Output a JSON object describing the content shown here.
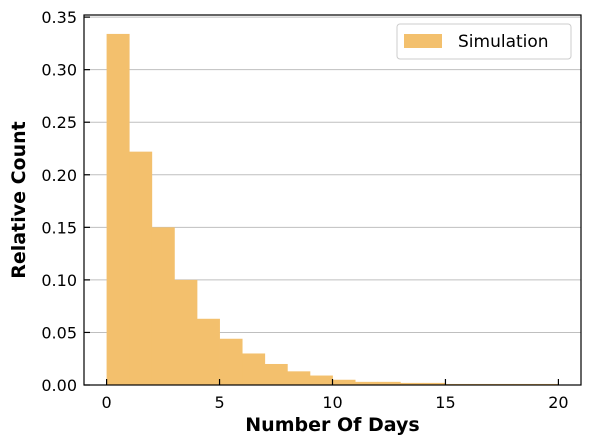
{
  "chart_data": {
    "type": "bar",
    "subtype": "histogram",
    "xlabel": "Number Of Days",
    "ylabel": "Relative Count",
    "xlim": [
      -1,
      21
    ],
    "ylim": [
      0,
      0.352
    ],
    "xticks": [
      0,
      5,
      10,
      15,
      20
    ],
    "xtick_labels": [
      "0",
      "5",
      "10",
      "15",
      "20"
    ],
    "yticks": [
      0,
      0.05,
      0.1,
      0.15,
      0.2,
      0.25,
      0.3,
      0.35
    ],
    "ytick_labels": [
      "0.00",
      "0.05",
      "0.10",
      "0.15",
      "0.20",
      "0.25",
      "0.30",
      "0.35"
    ],
    "grid": {
      "y": true,
      "x": false
    },
    "legend": {
      "placement": "top-right"
    },
    "series": [
      {
        "name": "Simulation",
        "color": "#f3c06d",
        "bins": [
          {
            "start": 0,
            "end": 1,
            "value": 0.334
          },
          {
            "start": 1,
            "end": 2,
            "value": 0.222
          },
          {
            "start": 2,
            "end": 3,
            "value": 0.15
          },
          {
            "start": 3,
            "end": 4,
            "value": 0.1
          },
          {
            "start": 4,
            "end": 5,
            "value": 0.063
          },
          {
            "start": 5,
            "end": 6,
            "value": 0.044
          },
          {
            "start": 6,
            "end": 7,
            "value": 0.03
          },
          {
            "start": 7,
            "end": 8,
            "value": 0.02
          },
          {
            "start": 8,
            "end": 9,
            "value": 0.013
          },
          {
            "start": 9,
            "end": 10,
            "value": 0.009
          },
          {
            "start": 10,
            "end": 11,
            "value": 0.005
          },
          {
            "start": 11,
            "end": 12,
            "value": 0.003
          },
          {
            "start": 12,
            "end": 13,
            "value": 0.003
          },
          {
            "start": 13,
            "end": 14,
            "value": 0.002
          },
          {
            "start": 14,
            "end": 15,
            "value": 0.002
          },
          {
            "start": 15,
            "end": 16,
            "value": 0.001
          },
          {
            "start": 16,
            "end": 17,
            "value": 0.001
          },
          {
            "start": 17,
            "end": 18,
            "value": 0.001
          },
          {
            "start": 18,
            "end": 19,
            "value": 0.001
          },
          {
            "start": 19,
            "end": 20,
            "value": 0.001
          }
        ]
      }
    ]
  }
}
